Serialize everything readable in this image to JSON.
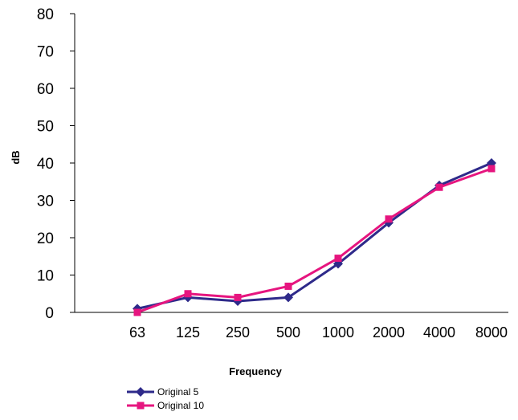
{
  "chart_data": {
    "type": "line",
    "title": "",
    "xlabel": "Frequency",
    "ylabel": "dB",
    "categories": [
      "63",
      "125",
      "250",
      "500",
      "1000",
      "2000",
      "4000",
      "8000"
    ],
    "ylim": [
      0,
      80
    ],
    "yticks": [
      "0",
      "10",
      "20",
      "30",
      "40",
      "50",
      "60",
      "70",
      "80"
    ],
    "grid": false,
    "legend_position": "bottom-left",
    "series": [
      {
        "name": "Original 5",
        "values": [
          1,
          4,
          3,
          4,
          13,
          24,
          34,
          40
        ],
        "color": "#2e2a8a",
        "marker": "diamond"
      },
      {
        "name": "Original 10",
        "values": [
          0,
          5,
          4,
          7,
          14.5,
          25,
          33.5,
          38.5
        ],
        "color": "#e6157f",
        "marker": "square"
      }
    ]
  }
}
